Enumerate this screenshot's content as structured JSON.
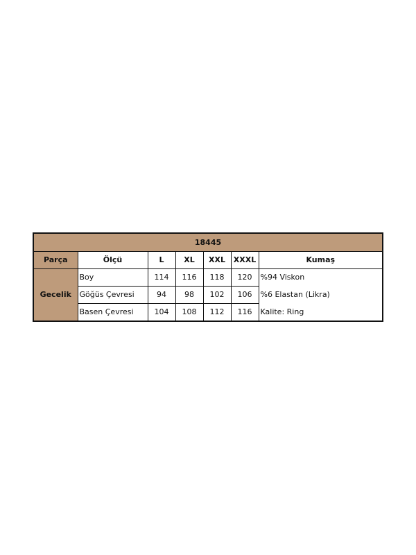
{
  "title": "18445",
  "headers": {
    "part": "Parça",
    "measure": "Ölçü",
    "sizes": [
      "L",
      "XL",
      "XXL",
      "XXXL"
    ],
    "fabric": "Kumaş"
  },
  "part_name": "Gecelik",
  "rows": [
    {
      "label": "Boy",
      "values": [
        "114",
        "116",
        "118",
        "120"
      ]
    },
    {
      "label": "Göğüs Çevresi",
      "values": [
        "94",
        "98",
        "102",
        "106"
      ]
    },
    {
      "label": "Basen Çevresi",
      "values": [
        "104",
        "108",
        "112",
        "116"
      ]
    }
  ],
  "fabric_lines": [
    "%94 Viskon",
    "%6 Elastan (Likra)",
    "Kalite: Ring"
  ],
  "colors": {
    "header_bg": "#be9b7b",
    "border": "#111111"
  }
}
